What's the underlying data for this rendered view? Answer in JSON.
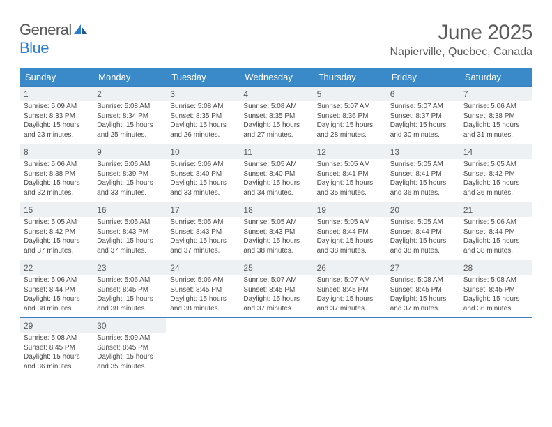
{
  "logo": {
    "general": "General",
    "blue": "Blue"
  },
  "title": "June 2025",
  "location": "Napierville, Quebec, Canada",
  "colors": {
    "header_bg": "#3a8ac9",
    "daynum_bg": "#eef1f3",
    "rule": "#3a7fbf",
    "text": "#4a4a4a"
  },
  "weekdays": [
    "Sunday",
    "Monday",
    "Tuesday",
    "Wednesday",
    "Thursday",
    "Friday",
    "Saturday"
  ],
  "days": [
    {
      "n": 1,
      "sr": "5:09 AM",
      "ss": "8:33 PM",
      "dl": "15 hours and 23 minutes."
    },
    {
      "n": 2,
      "sr": "5:08 AM",
      "ss": "8:34 PM",
      "dl": "15 hours and 25 minutes."
    },
    {
      "n": 3,
      "sr": "5:08 AM",
      "ss": "8:35 PM",
      "dl": "15 hours and 26 minutes."
    },
    {
      "n": 4,
      "sr": "5:08 AM",
      "ss": "8:35 PM",
      "dl": "15 hours and 27 minutes."
    },
    {
      "n": 5,
      "sr": "5:07 AM",
      "ss": "8:36 PM",
      "dl": "15 hours and 28 minutes."
    },
    {
      "n": 6,
      "sr": "5:07 AM",
      "ss": "8:37 PM",
      "dl": "15 hours and 30 minutes."
    },
    {
      "n": 7,
      "sr": "5:06 AM",
      "ss": "8:38 PM",
      "dl": "15 hours and 31 minutes."
    },
    {
      "n": 8,
      "sr": "5:06 AM",
      "ss": "8:38 PM",
      "dl": "15 hours and 32 minutes."
    },
    {
      "n": 9,
      "sr": "5:06 AM",
      "ss": "8:39 PM",
      "dl": "15 hours and 33 minutes."
    },
    {
      "n": 10,
      "sr": "5:06 AM",
      "ss": "8:40 PM",
      "dl": "15 hours and 33 minutes."
    },
    {
      "n": 11,
      "sr": "5:05 AM",
      "ss": "8:40 PM",
      "dl": "15 hours and 34 minutes."
    },
    {
      "n": 12,
      "sr": "5:05 AM",
      "ss": "8:41 PM",
      "dl": "15 hours and 35 minutes."
    },
    {
      "n": 13,
      "sr": "5:05 AM",
      "ss": "8:41 PM",
      "dl": "15 hours and 36 minutes."
    },
    {
      "n": 14,
      "sr": "5:05 AM",
      "ss": "8:42 PM",
      "dl": "15 hours and 36 minutes."
    },
    {
      "n": 15,
      "sr": "5:05 AM",
      "ss": "8:42 PM",
      "dl": "15 hours and 37 minutes."
    },
    {
      "n": 16,
      "sr": "5:05 AM",
      "ss": "8:43 PM",
      "dl": "15 hours and 37 minutes."
    },
    {
      "n": 17,
      "sr": "5:05 AM",
      "ss": "8:43 PM",
      "dl": "15 hours and 37 minutes."
    },
    {
      "n": 18,
      "sr": "5:05 AM",
      "ss": "8:43 PM",
      "dl": "15 hours and 38 minutes."
    },
    {
      "n": 19,
      "sr": "5:05 AM",
      "ss": "8:44 PM",
      "dl": "15 hours and 38 minutes."
    },
    {
      "n": 20,
      "sr": "5:05 AM",
      "ss": "8:44 PM",
      "dl": "15 hours and 38 minutes."
    },
    {
      "n": 21,
      "sr": "5:06 AM",
      "ss": "8:44 PM",
      "dl": "15 hours and 38 minutes."
    },
    {
      "n": 22,
      "sr": "5:06 AM",
      "ss": "8:44 PM",
      "dl": "15 hours and 38 minutes."
    },
    {
      "n": 23,
      "sr": "5:06 AM",
      "ss": "8:45 PM",
      "dl": "15 hours and 38 minutes."
    },
    {
      "n": 24,
      "sr": "5:06 AM",
      "ss": "8:45 PM",
      "dl": "15 hours and 38 minutes."
    },
    {
      "n": 25,
      "sr": "5:07 AM",
      "ss": "8:45 PM",
      "dl": "15 hours and 37 minutes."
    },
    {
      "n": 26,
      "sr": "5:07 AM",
      "ss": "8:45 PM",
      "dl": "15 hours and 37 minutes."
    },
    {
      "n": 27,
      "sr": "5:08 AM",
      "ss": "8:45 PM",
      "dl": "15 hours and 37 minutes."
    },
    {
      "n": 28,
      "sr": "5:08 AM",
      "ss": "8:45 PM",
      "dl": "15 hours and 36 minutes."
    },
    {
      "n": 29,
      "sr": "5:08 AM",
      "ss": "8:45 PM",
      "dl": "15 hours and 36 minutes."
    },
    {
      "n": 30,
      "sr": "5:09 AM",
      "ss": "8:45 PM",
      "dl": "15 hours and 35 minutes."
    }
  ],
  "labels": {
    "sunrise": "Sunrise:",
    "sunset": "Sunset:",
    "daylight": "Daylight:"
  },
  "start_weekday": 0
}
